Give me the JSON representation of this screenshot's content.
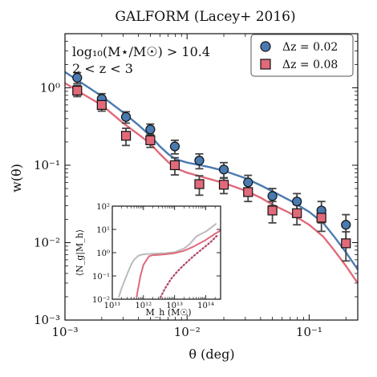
{
  "chart_data": [
    {
      "type": "scatter",
      "title": "GALFORM (Lacey+ 2016)",
      "xlabel": "θ (deg)",
      "ylabel": "w(θ)",
      "xscale": "log",
      "yscale": "log",
      "xlim": [
        0.001,
        0.25
      ],
      "ylim": [
        0.001,
        5
      ],
      "xticks": [
        {
          "value": 0.001,
          "label": "10⁻³"
        },
        {
          "value": 0.01,
          "label": "10⁻²"
        },
        {
          "value": 0.1,
          "label": "10⁻¹"
        }
      ],
      "yticks": [
        {
          "value": 0.001,
          "label": "10⁻³"
        },
        {
          "value": 0.01,
          "label": "10⁻²"
        },
        {
          "value": 0.1,
          "label": "10⁻¹"
        },
        {
          "value": 1,
          "label": "10⁰"
        }
      ],
      "annotations": [
        "log₁₀(M⋆/M☉) > 10.4",
        "2 < z < 3"
      ],
      "legend": {
        "placement": "top-right",
        "entries": [
          "Δz = 0.02",
          "Δz = 0.08"
        ]
      },
      "series": [
        {
          "name": "Δz = 0.02",
          "marker": "circle",
          "color": "#4a7ab0",
          "points": [
            {
              "x": 0.00126,
              "y": 1.35,
              "err": 0.22
            },
            {
              "x": 0.002,
              "y": 0.72,
              "err": 0.12
            },
            {
              "x": 0.00316,
              "y": 0.42,
              "err": 0.07
            },
            {
              "x": 0.005,
              "y": 0.29,
              "err": 0.05
            },
            {
              "x": 0.00794,
              "y": 0.175,
              "err": 0.035
            },
            {
              "x": 0.0126,
              "y": 0.115,
              "err": 0.025
            },
            {
              "x": 0.02,
              "y": 0.088,
              "err": 0.02
            },
            {
              "x": 0.0316,
              "y": 0.06,
              "err": 0.014
            },
            {
              "x": 0.05,
              "y": 0.04,
              "err": 0.01
            },
            {
              "x": 0.0794,
              "y": 0.034,
              "err": 0.009
            },
            {
              "x": 0.126,
              "y": 0.026,
              "err": 0.008
            },
            {
              "x": 0.2,
              "y": 0.017,
              "err": 0.006
            }
          ],
          "model_curve": {
            "x": [
              0.001,
              0.0015,
              0.002,
              0.003,
              0.004,
              0.005,
              0.006,
              0.007,
              0.008,
              0.01,
              0.012,
              0.015,
              0.02,
              0.03,
              0.04,
              0.05,
              0.07,
              0.1,
              0.13,
              0.16,
              0.2,
              0.25
            ],
            "y": [
              1.6,
              1.05,
              0.78,
              0.48,
              0.33,
              0.24,
              0.175,
              0.14,
              0.12,
              0.108,
              0.102,
              0.095,
              0.085,
              0.068,
              0.055,
              0.046,
              0.035,
              0.025,
              0.018,
              0.012,
              0.0075,
              0.0045
            ]
          }
        },
        {
          "name": "Δz = 0.08",
          "marker": "square",
          "color": "#e06a7a",
          "points": [
            {
              "x": 0.00126,
              "y": 0.92,
              "err": 0.15
            },
            {
              "x": 0.002,
              "y": 0.6,
              "err": 0.1
            },
            {
              "x": 0.00316,
              "y": 0.24,
              "err": 0.06
            },
            {
              "x": 0.005,
              "y": 0.21,
              "err": 0.04
            },
            {
              "x": 0.00794,
              "y": 0.1,
              "err": 0.025
            },
            {
              "x": 0.0126,
              "y": 0.057,
              "err": 0.016
            },
            {
              "x": 0.02,
              "y": 0.056,
              "err": 0.013
            },
            {
              "x": 0.0316,
              "y": 0.045,
              "err": 0.011
            },
            {
              "x": 0.05,
              "y": 0.026,
              "err": 0.008
            },
            {
              "x": 0.0794,
              "y": 0.024,
              "err": 0.007
            },
            {
              "x": 0.126,
              "y": 0.021,
              "err": 0.007
            },
            {
              "x": 0.2,
              "y": 0.0098,
              "err": 0.004
            }
          ],
          "model_curve": {
            "x": [
              0.001,
              0.0015,
              0.002,
              0.003,
              0.004,
              0.005,
              0.006,
              0.007,
              0.008,
              0.01,
              0.012,
              0.015,
              0.02,
              0.03,
              0.04,
              0.05,
              0.07,
              0.1,
              0.13,
              0.16,
              0.2,
              0.25
            ],
            "y": [
              1.15,
              0.78,
              0.6,
              0.35,
              0.25,
              0.19,
              0.14,
              0.11,
              0.092,
              0.08,
              0.074,
              0.067,
              0.059,
              0.047,
              0.038,
              0.031,
              0.024,
              0.017,
              0.012,
              0.008,
              0.005,
              0.003
            ]
          }
        }
      ]
    },
    {
      "type": "line",
      "inset": true,
      "xlabel": "M_h (M☉)",
      "ylabel": "⟨N_g|M_h⟩",
      "xscale": "log",
      "yscale": "log",
      "xlim": [
        100000000000.0,
        300000000000000.0
      ],
      "ylim": [
        0.01,
        100
      ],
      "xticks": [
        {
          "value": 100000000000.0,
          "label": "10¹¹"
        },
        {
          "value": 1000000000000.0,
          "label": "10¹²"
        },
        {
          "value": 10000000000000.0,
          "label": "10¹³"
        },
        {
          "value": 100000000000000.0,
          "label": "10¹⁴"
        }
      ],
      "yticks": [
        {
          "value": 0.01,
          "label": "10⁻²"
        },
        {
          "value": 0.1,
          "label": "10⁻¹"
        },
        {
          "value": 1,
          "label": "10⁰"
        },
        {
          "value": 10,
          "label": "10¹"
        },
        {
          "value": 100,
          "label": "10²"
        }
      ],
      "series": [
        {
          "style": "solid",
          "color": "#bbbbbb",
          "x": [
            160000000000.0,
            200000000000.0,
            300000000000.0,
            400000000000.0,
            500000000000.0,
            700000000000.0,
            1000000000000.0,
            2000000000000.0,
            5000000000000.0,
            10000000000000.0,
            20000000000000.0,
            30000000000000.0,
            50000000000000.0,
            80000000000000.0,
            100000000000000.0,
            150000000000000.0,
            220000000000000.0
          ],
          "y": [
            0.012,
            0.03,
            0.12,
            0.3,
            0.5,
            0.75,
            0.85,
            0.9,
            0.95,
            1.05,
            1.5,
            2.3,
            5,
            7,
            8,
            12,
            18
          ]
        },
        {
          "style": "solid",
          "color": "#e06a7a",
          "x": [
            600000000000.0,
            800000000000.0,
            1000000000000.0,
            1500000000000.0,
            2000000000000.0,
            3000000000000.0,
            5000000000000.0,
            10000000000000.0,
            20000000000000.0,
            40000000000000.0,
            100000000000000.0,
            200000000000000.0,
            300000000000000.0
          ],
          "y": [
            0.012,
            0.1,
            0.3,
            0.7,
            0.78,
            0.8,
            0.85,
            0.95,
            1.2,
            1.8,
            3.5,
            6.5,
            9
          ]
        },
        {
          "style": "dotted",
          "color": "#b04466",
          "x": [
            3500000000000.0,
            5000000000000.0,
            8000000000000.0,
            12000000000000.0,
            20000000000000.0,
            40000000000000.0,
            80000000000000.0,
            150000000000000.0,
            250000000000000.0
          ],
          "y": [
            0.012,
            0.03,
            0.08,
            0.15,
            0.3,
            0.7,
            1.5,
            3,
            6
          ]
        }
      ]
    }
  ]
}
